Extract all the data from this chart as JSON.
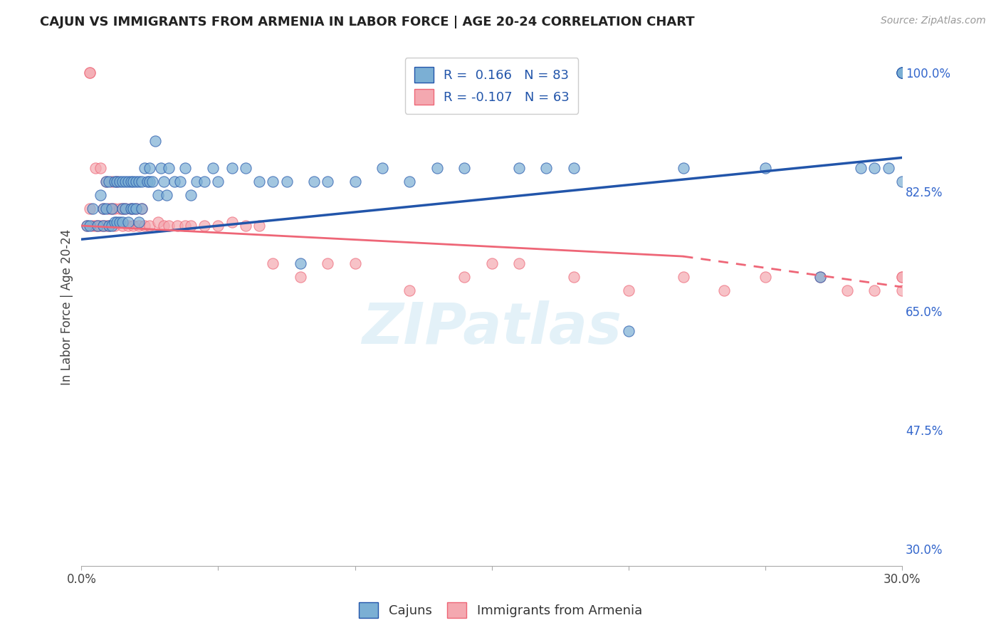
{
  "title": "CAJUN VS IMMIGRANTS FROM ARMENIA IN LABOR FORCE | AGE 20-24 CORRELATION CHART",
  "source": "Source: ZipAtlas.com",
  "ylabel": "In Labor Force | Age 20-24",
  "x_min": 0.0,
  "x_max": 0.3,
  "y_min": 0.275,
  "y_max": 1.035,
  "x_ticks": [
    0.0,
    0.05,
    0.1,
    0.15,
    0.2,
    0.25,
    0.3
  ],
  "x_tick_labels": [
    "0.0%",
    "",
    "",
    "",
    "",
    "",
    "30.0%"
  ],
  "y_ticks": [
    0.3,
    0.475,
    0.65,
    0.825,
    1.0
  ],
  "y_tick_labels_right": [
    "30.0%",
    "47.5%",
    "65.0%",
    "82.5%",
    "100.0%"
  ],
  "blue_color": "#7BAFD4",
  "pink_color": "#F4A8B0",
  "trend_blue": "#2255AA",
  "trend_pink": "#EE6677",
  "watermark": "ZIPatlas",
  "blue_trend_x0": 0.0,
  "blue_trend_y0": 0.755,
  "blue_trend_x1": 0.3,
  "blue_trend_y1": 0.875,
  "pink_trend_x0": 0.0,
  "pink_trend_y0": 0.775,
  "pink_trend_y1_solid": 0.73,
  "pink_trend_x_solid_end": 0.22,
  "pink_trend_y1_dash": 0.685,
  "blue_scatter_x": [
    0.002,
    0.003,
    0.004,
    0.006,
    0.007,
    0.008,
    0.008,
    0.009,
    0.009,
    0.01,
    0.01,
    0.011,
    0.011,
    0.012,
    0.012,
    0.013,
    0.013,
    0.014,
    0.014,
    0.015,
    0.015,
    0.015,
    0.016,
    0.016,
    0.017,
    0.017,
    0.018,
    0.018,
    0.019,
    0.019,
    0.02,
    0.02,
    0.021,
    0.021,
    0.022,
    0.022,
    0.023,
    0.024,
    0.025,
    0.025,
    0.026,
    0.027,
    0.028,
    0.029,
    0.03,
    0.031,
    0.032,
    0.034,
    0.036,
    0.038,
    0.04,
    0.042,
    0.045,
    0.048,
    0.05,
    0.055,
    0.06,
    0.065,
    0.07,
    0.075,
    0.08,
    0.085,
    0.09,
    0.1,
    0.11,
    0.12,
    0.13,
    0.14,
    0.16,
    0.17,
    0.18,
    0.2,
    0.22,
    0.25,
    0.27,
    0.285,
    0.29,
    0.295,
    0.3,
    0.3,
    0.3,
    0.3,
    0.3
  ],
  "blue_scatter_y": [
    0.775,
    0.775,
    0.8,
    0.775,
    0.82,
    0.775,
    0.8,
    0.8,
    0.84,
    0.775,
    0.84,
    0.8,
    0.775,
    0.84,
    0.78,
    0.84,
    0.78,
    0.78,
    0.84,
    0.8,
    0.84,
    0.78,
    0.84,
    0.8,
    0.84,
    0.78,
    0.84,
    0.8,
    0.8,
    0.84,
    0.8,
    0.84,
    0.78,
    0.84,
    0.8,
    0.84,
    0.86,
    0.84,
    0.86,
    0.84,
    0.84,
    0.9,
    0.82,
    0.86,
    0.84,
    0.82,
    0.86,
    0.84,
    0.84,
    0.86,
    0.82,
    0.84,
    0.84,
    0.86,
    0.84,
    0.86,
    0.86,
    0.84,
    0.84,
    0.84,
    0.72,
    0.84,
    0.84,
    0.84,
    0.86,
    0.84,
    0.86,
    0.86,
    0.86,
    0.86,
    0.86,
    0.62,
    0.86,
    0.86,
    0.7,
    0.86,
    0.86,
    0.86,
    1.0,
    1.0,
    1.0,
    1.0,
    0.84
  ],
  "pink_scatter_x": [
    0.002,
    0.003,
    0.004,
    0.005,
    0.006,
    0.007,
    0.008,
    0.008,
    0.009,
    0.009,
    0.01,
    0.01,
    0.011,
    0.011,
    0.012,
    0.012,
    0.013,
    0.014,
    0.015,
    0.015,
    0.016,
    0.017,
    0.018,
    0.019,
    0.02,
    0.021,
    0.022,
    0.023,
    0.025,
    0.028,
    0.03,
    0.032,
    0.035,
    0.038,
    0.04,
    0.045,
    0.05,
    0.055,
    0.06,
    0.065,
    0.07,
    0.08,
    0.09,
    0.1,
    0.12,
    0.14,
    0.15,
    0.16,
    0.18,
    0.2,
    0.22,
    0.235,
    0.25,
    0.27,
    0.28,
    0.29,
    0.3,
    0.3,
    0.3,
    0.003,
    0.003,
    0.005,
    0.007
  ],
  "pink_scatter_y": [
    0.775,
    0.8,
    0.775,
    0.775,
    0.775,
    0.775,
    0.775,
    0.8,
    0.775,
    0.84,
    0.775,
    0.8,
    0.8,
    0.84,
    0.775,
    0.8,
    0.84,
    0.8,
    0.775,
    0.8,
    0.8,
    0.775,
    0.8,
    0.775,
    0.8,
    0.775,
    0.8,
    0.775,
    0.775,
    0.78,
    0.775,
    0.775,
    0.775,
    0.775,
    0.775,
    0.775,
    0.775,
    0.78,
    0.775,
    0.775,
    0.72,
    0.7,
    0.72,
    0.72,
    0.68,
    0.7,
    0.72,
    0.72,
    0.7,
    0.68,
    0.7,
    0.68,
    0.7,
    0.7,
    0.68,
    0.68,
    0.7,
    0.7,
    0.68,
    1.0,
    1.0,
    0.86,
    0.86
  ]
}
